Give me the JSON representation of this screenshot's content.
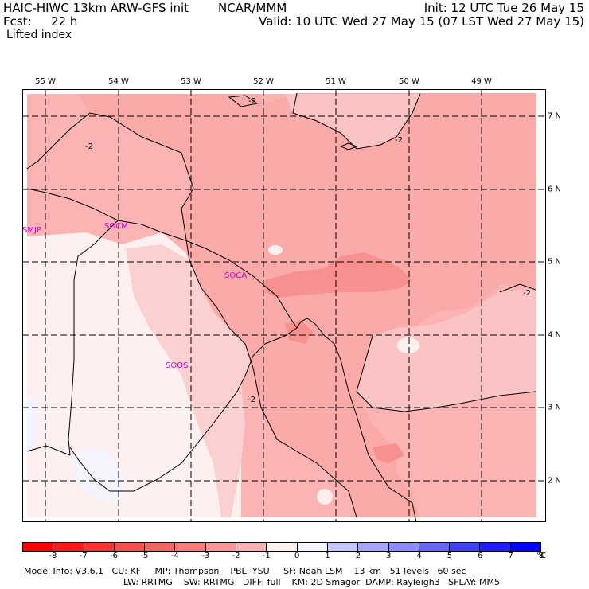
{
  "header": {
    "model": "HAIC-HIWC 13km ARW-GFS init",
    "org": "NCAR/MMM",
    "init": "Init: 12 UTC Tue 26 May 15",
    "fcst_label": "Fcst:",
    "fcst_value": "22 h",
    "valid": "Valid: 10 UTC Wed 27 May 15 (07 LST Wed 27 May 15)",
    "field": "Lifted index"
  },
  "map": {
    "longitude_labels": [
      "55 W",
      "54 W",
      "53 W",
      "52 W",
      "51 W",
      "50 W",
      "49 W"
    ],
    "latitude_labels": [
      "7 N",
      "6 N",
      "5 N",
      "4 N",
      "3 N",
      "2 N"
    ],
    "stations": [
      "SMJP",
      "SOCM",
      "SOCA",
      "SOOS"
    ],
    "contour_labels": [
      "-2",
      "-2",
      "-2",
      "-2",
      "-2"
    ]
  },
  "colorbar": {
    "unit": "°C",
    "labels": [
      "-8",
      "-7",
      "-6",
      "-5",
      "-4",
      "-3",
      "-2",
      "-1",
      "0",
      "1",
      "2",
      "3",
      "4",
      "5",
      "6",
      "7",
      "8"
    ],
    "colors": [
      "#ff0000",
      "#ff1a1a",
      "#ff3333",
      "#ff4d4d",
      "#f76565",
      "#f77e7e",
      "#fb9999",
      "#fbb3b3",
      "#fff0f0",
      "#f4f4ff",
      "#c7c7ff",
      "#a6a6ff",
      "#8c8cff",
      "#6666ff",
      "#4040ff",
      "#1f1fff",
      "#0000ff"
    ]
  },
  "footer": {
    "line1": "Model Info: V3.6.1   CU: KF     MP: Thompson    PBL: YSU     SF: Noah LSM    13 km   51 levels   60 sec",
    "line2": "LW: RRTMG    SW: RRTMG   DIFF: full    KM: 2D Smagor  DAMP: Rayleigh3   SFLAY: MM5"
  }
}
